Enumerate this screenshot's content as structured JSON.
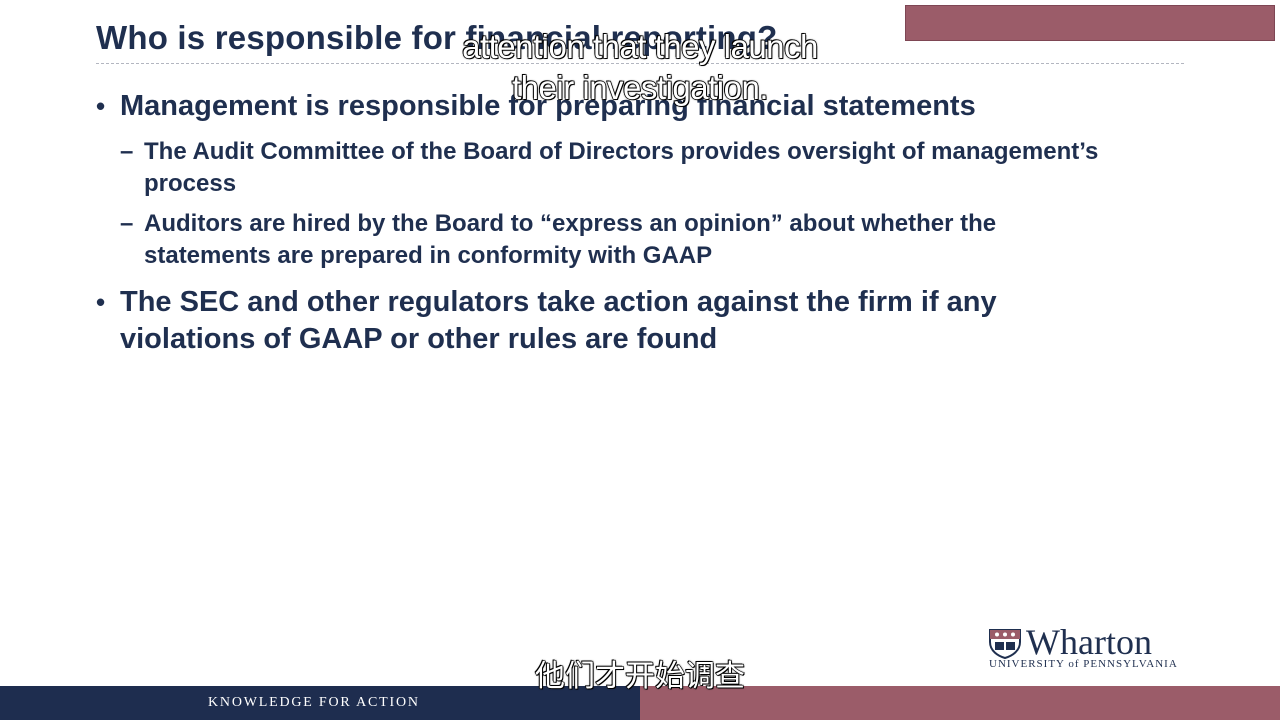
{
  "slide": {
    "title": "Who is responsible for financial reporting?",
    "bullets": [
      {
        "text": "Management is responsible for preparing financial statements",
        "sub": [
          "The Audit Committee of the Board of Directors provides oversight of management’s process",
          "Auditors are hired by the Board to “express an opinion” about whether the statements are prepared in conformity with GAAP"
        ]
      },
      {
        "text": "The SEC and other regulators take action against the firm if any violations of GAAP or other rules are found"
      }
    ],
    "bullet_glyph": "•",
    "dash_glyph": "–"
  },
  "captions": {
    "english_line1": "attention that they launch",
    "english_line2": "their investigation.",
    "chinese": "他们才开始调查"
  },
  "logo": {
    "wordmark": "Wharton",
    "subline": "UNIVERSITY of PENNSYLVANIA"
  },
  "footer": {
    "tagline": "KNOWLEDGE FOR ACTION"
  },
  "colors": {
    "navy": "#1e2d4f",
    "text": "#1f2f4f",
    "accent": "#9b5c69",
    "background": "#ffffff"
  }
}
